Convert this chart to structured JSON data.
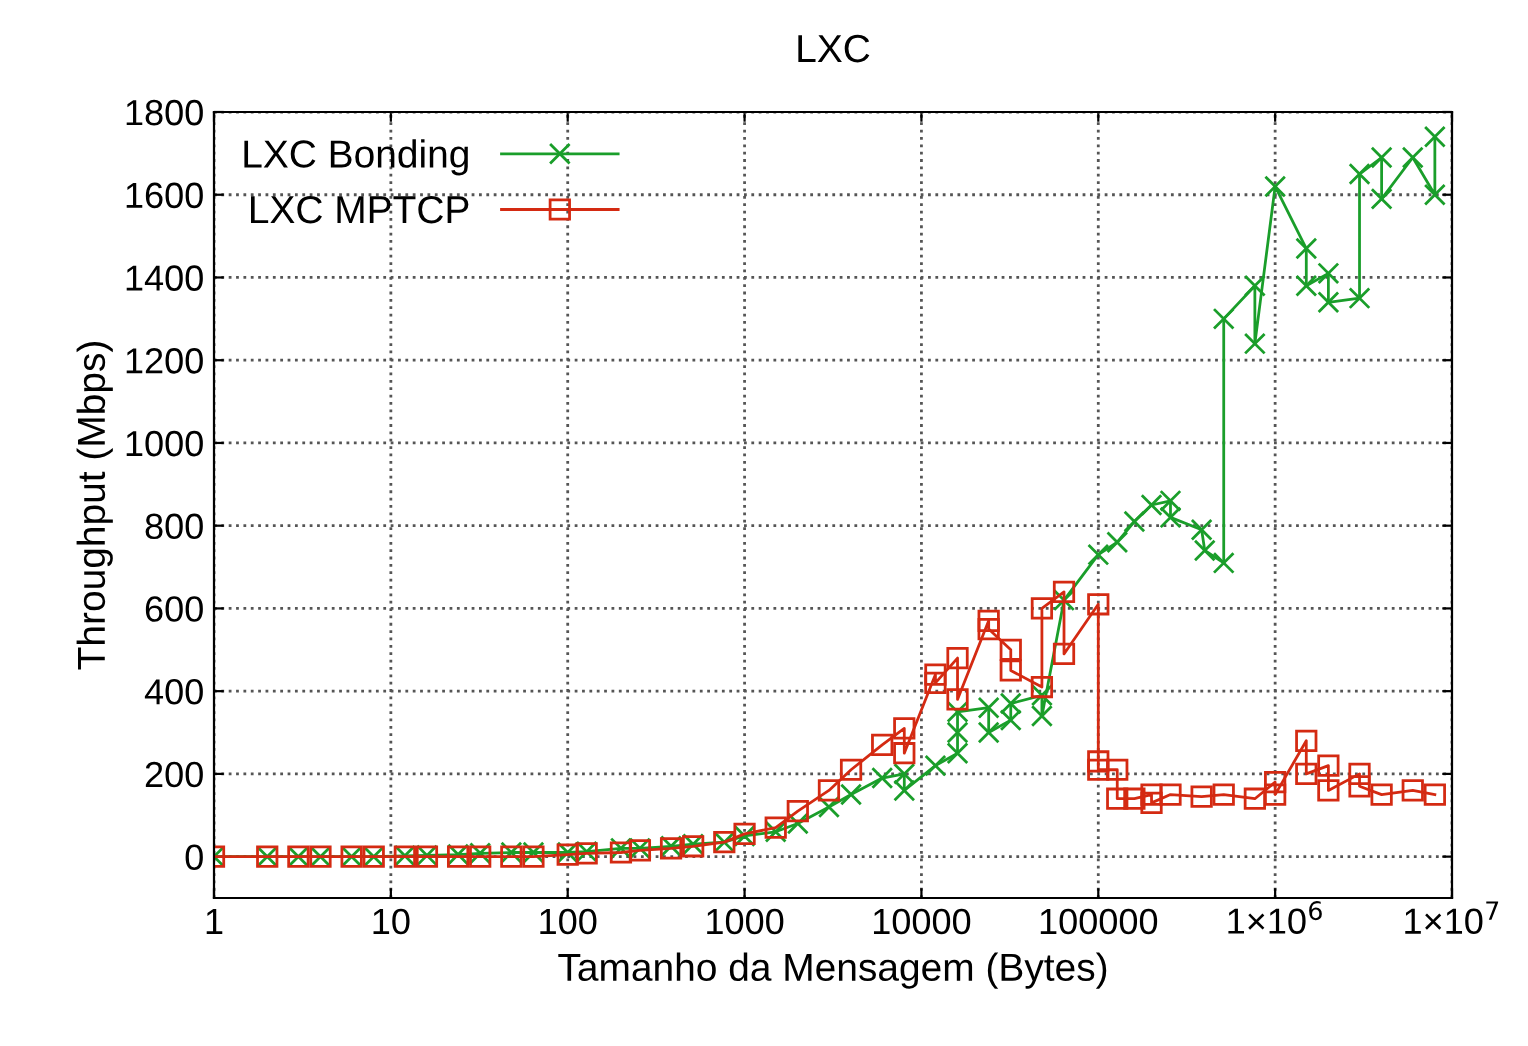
{
  "chart_data": {
    "type": "line",
    "title": "LXC",
    "xlabel": "Tamanho da Mensagem (Bytes)",
    "ylabel": "Throughput (Mbps)",
    "log": "x",
    "xlim": [
      1,
      10000000
    ],
    "xticks": [
      1,
      10,
      100,
      1000,
      10000,
      100000,
      {
        "value": 1000000,
        "label": "1×10$^{6}$"
      },
      {
        "value": 10000000,
        "label": "1×10$^{7}$"
      }
    ],
    "ylim": [
      -100,
      1800
    ],
    "yticks": [
      0,
      200,
      400,
      600,
      800,
      1000,
      1200,
      1400,
      1600,
      1800
    ],
    "grid": true,
    "legend": "top left",
    "line_style": "solid",
    "series": [
      {
        "name": "LXC Bonding",
        "color": "#1a9e2a",
        "marker": "cross",
        "x": [
          1,
          2,
          3,
          4,
          6,
          8,
          12,
          16,
          24,
          32,
          48,
          64,
          100,
          128,
          200,
          256,
          384,
          512,
          768,
          1000,
          1500,
          2000,
          3000,
          4000,
          6000,
          8000,
          8000,
          12000,
          16000,
          16000,
          16000,
          24000,
          24000,
          32000,
          32000,
          48000,
          48000,
          64000,
          100000,
          128000,
          160000,
          200000,
          256000,
          256000,
          384000,
          400000,
          512000,
          512000,
          768000,
          768000,
          1000000,
          1500000,
          1500000,
          2000000,
          2000000,
          3000000,
          3000000,
          4000000,
          4000000,
          6000000,
          8000000,
          8000000
        ],
        "values": [
          0,
          0,
          0,
          0,
          0,
          0,
          2,
          3,
          5,
          8,
          10,
          10,
          10,
          12,
          20,
          20,
          25,
          30,
          35,
          50,
          60,
          80,
          120,
          150,
          190,
          200,
          160,
          220,
          250,
          300,
          350,
          360,
          300,
          330,
          370,
          390,
          340,
          620,
          730,
          760,
          810,
          850,
          860,
          820,
          790,
          740,
          710,
          1300,
          1380,
          1240,
          1620,
          1470,
          1380,
          1410,
          1340,
          1350,
          1650,
          1690,
          1590,
          1690,
          1600,
          1740
        ]
      },
      {
        "name": "LXC MPTCP",
        "color": "#d42a12",
        "marker": "square",
        "x": [
          1,
          2,
          3,
          4,
          6,
          8,
          12,
          16,
          24,
          32,
          48,
          64,
          100,
          128,
          200,
          256,
          384,
          512,
          768,
          1000,
          1500,
          2000,
          3000,
          4000,
          6000,
          8000,
          8000,
          12000,
          12000,
          16000,
          16000,
          24000,
          24000,
          32000,
          32000,
          48000,
          48000,
          64000,
          64000,
          100000,
          100000,
          100000,
          128000,
          128000,
          160000,
          200000,
          200000,
          256000,
          384000,
          512000,
          768000,
          1000000,
          1000000,
          1500000,
          1500000,
          2000000,
          2000000,
          3000000,
          3000000,
          4000000,
          6000000,
          8000000
        ],
        "values": [
          0,
          0,
          0,
          0,
          0,
          0,
          0,
          0,
          0,
          0,
          0,
          0,
          5,
          8,
          10,
          15,
          20,
          25,
          35,
          55,
          70,
          110,
          160,
          210,
          270,
          310,
          250,
          440,
          420,
          480,
          380,
          570,
          550,
          500,
          450,
          410,
          600,
          640,
          490,
          610,
          230,
          210,
          210,
          140,
          140,
          150,
          130,
          150,
          145,
          150,
          140,
          180,
          150,
          280,
          200,
          220,
          160,
          200,
          170,
          150,
          160,
          150
        ]
      }
    ]
  }
}
